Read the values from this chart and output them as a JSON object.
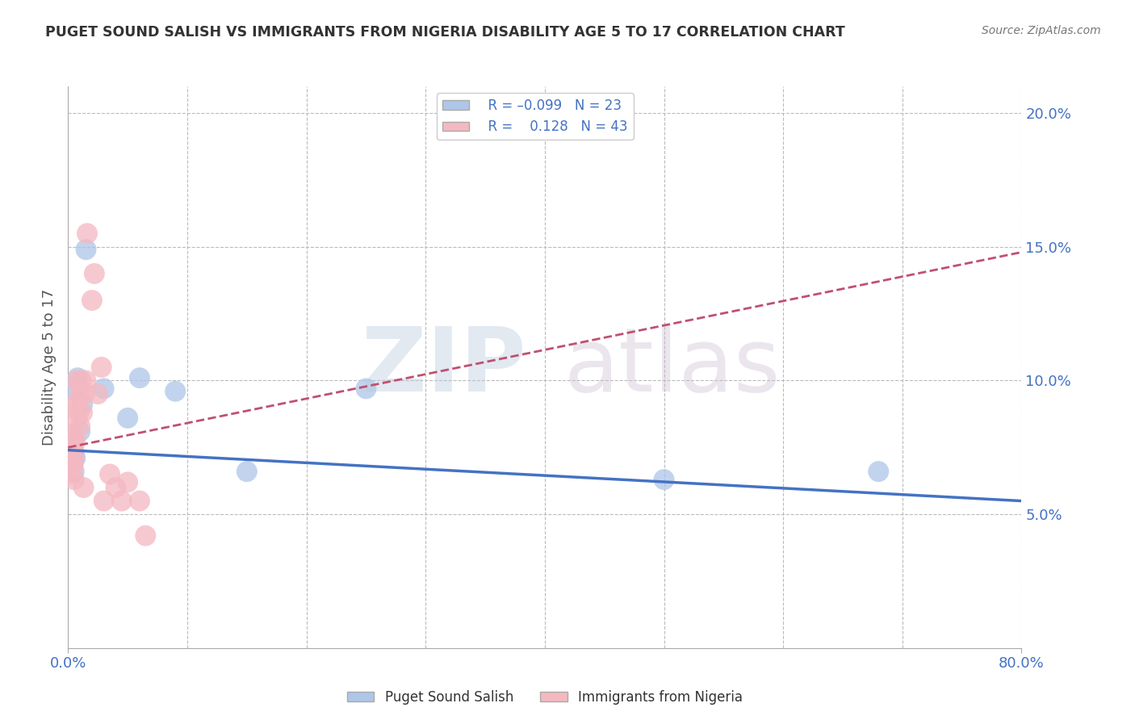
{
  "title": "PUGET SOUND SALISH VS IMMIGRANTS FROM NIGERIA DISABILITY AGE 5 TO 17 CORRELATION CHART",
  "source": "Source: ZipAtlas.com",
  "ylabel": "Disability Age 5 to 17",
  "x_min": 0.0,
  "x_max": 0.8,
  "y_min": 0.0,
  "y_max": 0.21,
  "blue_line_color": "#4472C4",
  "pink_line_color": "#c05070",
  "blue_scatter_color": "#aec6e8",
  "pink_scatter_color": "#f4b8c1",
  "grid_color": "#bbbbbb",
  "tick_label_color": "#4472C4",
  "blue_scatter": [
    [
      0.001,
      0.075
    ],
    [
      0.001,
      0.07
    ],
    [
      0.002,
      0.076
    ],
    [
      0.003,
      0.069
    ],
    [
      0.003,
      0.074
    ],
    [
      0.004,
      0.072
    ],
    [
      0.005,
      0.066
    ],
    [
      0.005,
      0.073
    ],
    [
      0.006,
      0.071
    ],
    [
      0.007,
      0.096
    ],
    [
      0.008,
      0.101
    ],
    [
      0.01,
      0.081
    ],
    [
      0.012,
      0.091
    ],
    [
      0.015,
      0.149
    ],
    [
      0.03,
      0.097
    ],
    [
      0.05,
      0.086
    ],
    [
      0.06,
      0.101
    ],
    [
      0.09,
      0.096
    ],
    [
      0.15,
      0.066
    ],
    [
      0.25,
      0.097
    ],
    [
      0.5,
      0.063
    ],
    [
      0.68,
      0.066
    ],
    [
      0.002,
      0.076
    ]
  ],
  "pink_scatter": [
    [
      0.001,
      0.068
    ],
    [
      0.001,
      0.072
    ],
    [
      0.001,
      0.073
    ],
    [
      0.001,
      0.069
    ],
    [
      0.002,
      0.07
    ],
    [
      0.002,
      0.068
    ],
    [
      0.002,
      0.075
    ],
    [
      0.002,
      0.071
    ],
    [
      0.003,
      0.067
    ],
    [
      0.003,
      0.065
    ],
    [
      0.003,
      0.072
    ],
    [
      0.004,
      0.068
    ],
    [
      0.004,
      0.074
    ],
    [
      0.004,
      0.08
    ],
    [
      0.004,
      0.069
    ],
    [
      0.005,
      0.063
    ],
    [
      0.005,
      0.076
    ],
    [
      0.005,
      0.071
    ],
    [
      0.006,
      0.09
    ],
    [
      0.006,
      0.078
    ],
    [
      0.007,
      0.085
    ],
    [
      0.007,
      0.1
    ],
    [
      0.008,
      0.092
    ],
    [
      0.009,
      0.088
    ],
    [
      0.01,
      0.095
    ],
    [
      0.01,
      0.083
    ],
    [
      0.011,
      0.1
    ],
    [
      0.012,
      0.088
    ],
    [
      0.013,
      0.06
    ],
    [
      0.014,
      0.095
    ],
    [
      0.015,
      0.1
    ],
    [
      0.016,
      0.155
    ],
    [
      0.02,
      0.13
    ],
    [
      0.022,
      0.14
    ],
    [
      0.025,
      0.095
    ],
    [
      0.028,
      0.105
    ],
    [
      0.03,
      0.055
    ],
    [
      0.035,
      0.065
    ],
    [
      0.04,
      0.06
    ],
    [
      0.045,
      0.055
    ],
    [
      0.05,
      0.062
    ],
    [
      0.06,
      0.055
    ],
    [
      0.065,
      0.042
    ]
  ],
  "blue_trend": [
    0.0,
    0.8,
    0.074,
    0.055
  ],
  "pink_trend": [
    0.0,
    0.8,
    0.075,
    0.148
  ]
}
